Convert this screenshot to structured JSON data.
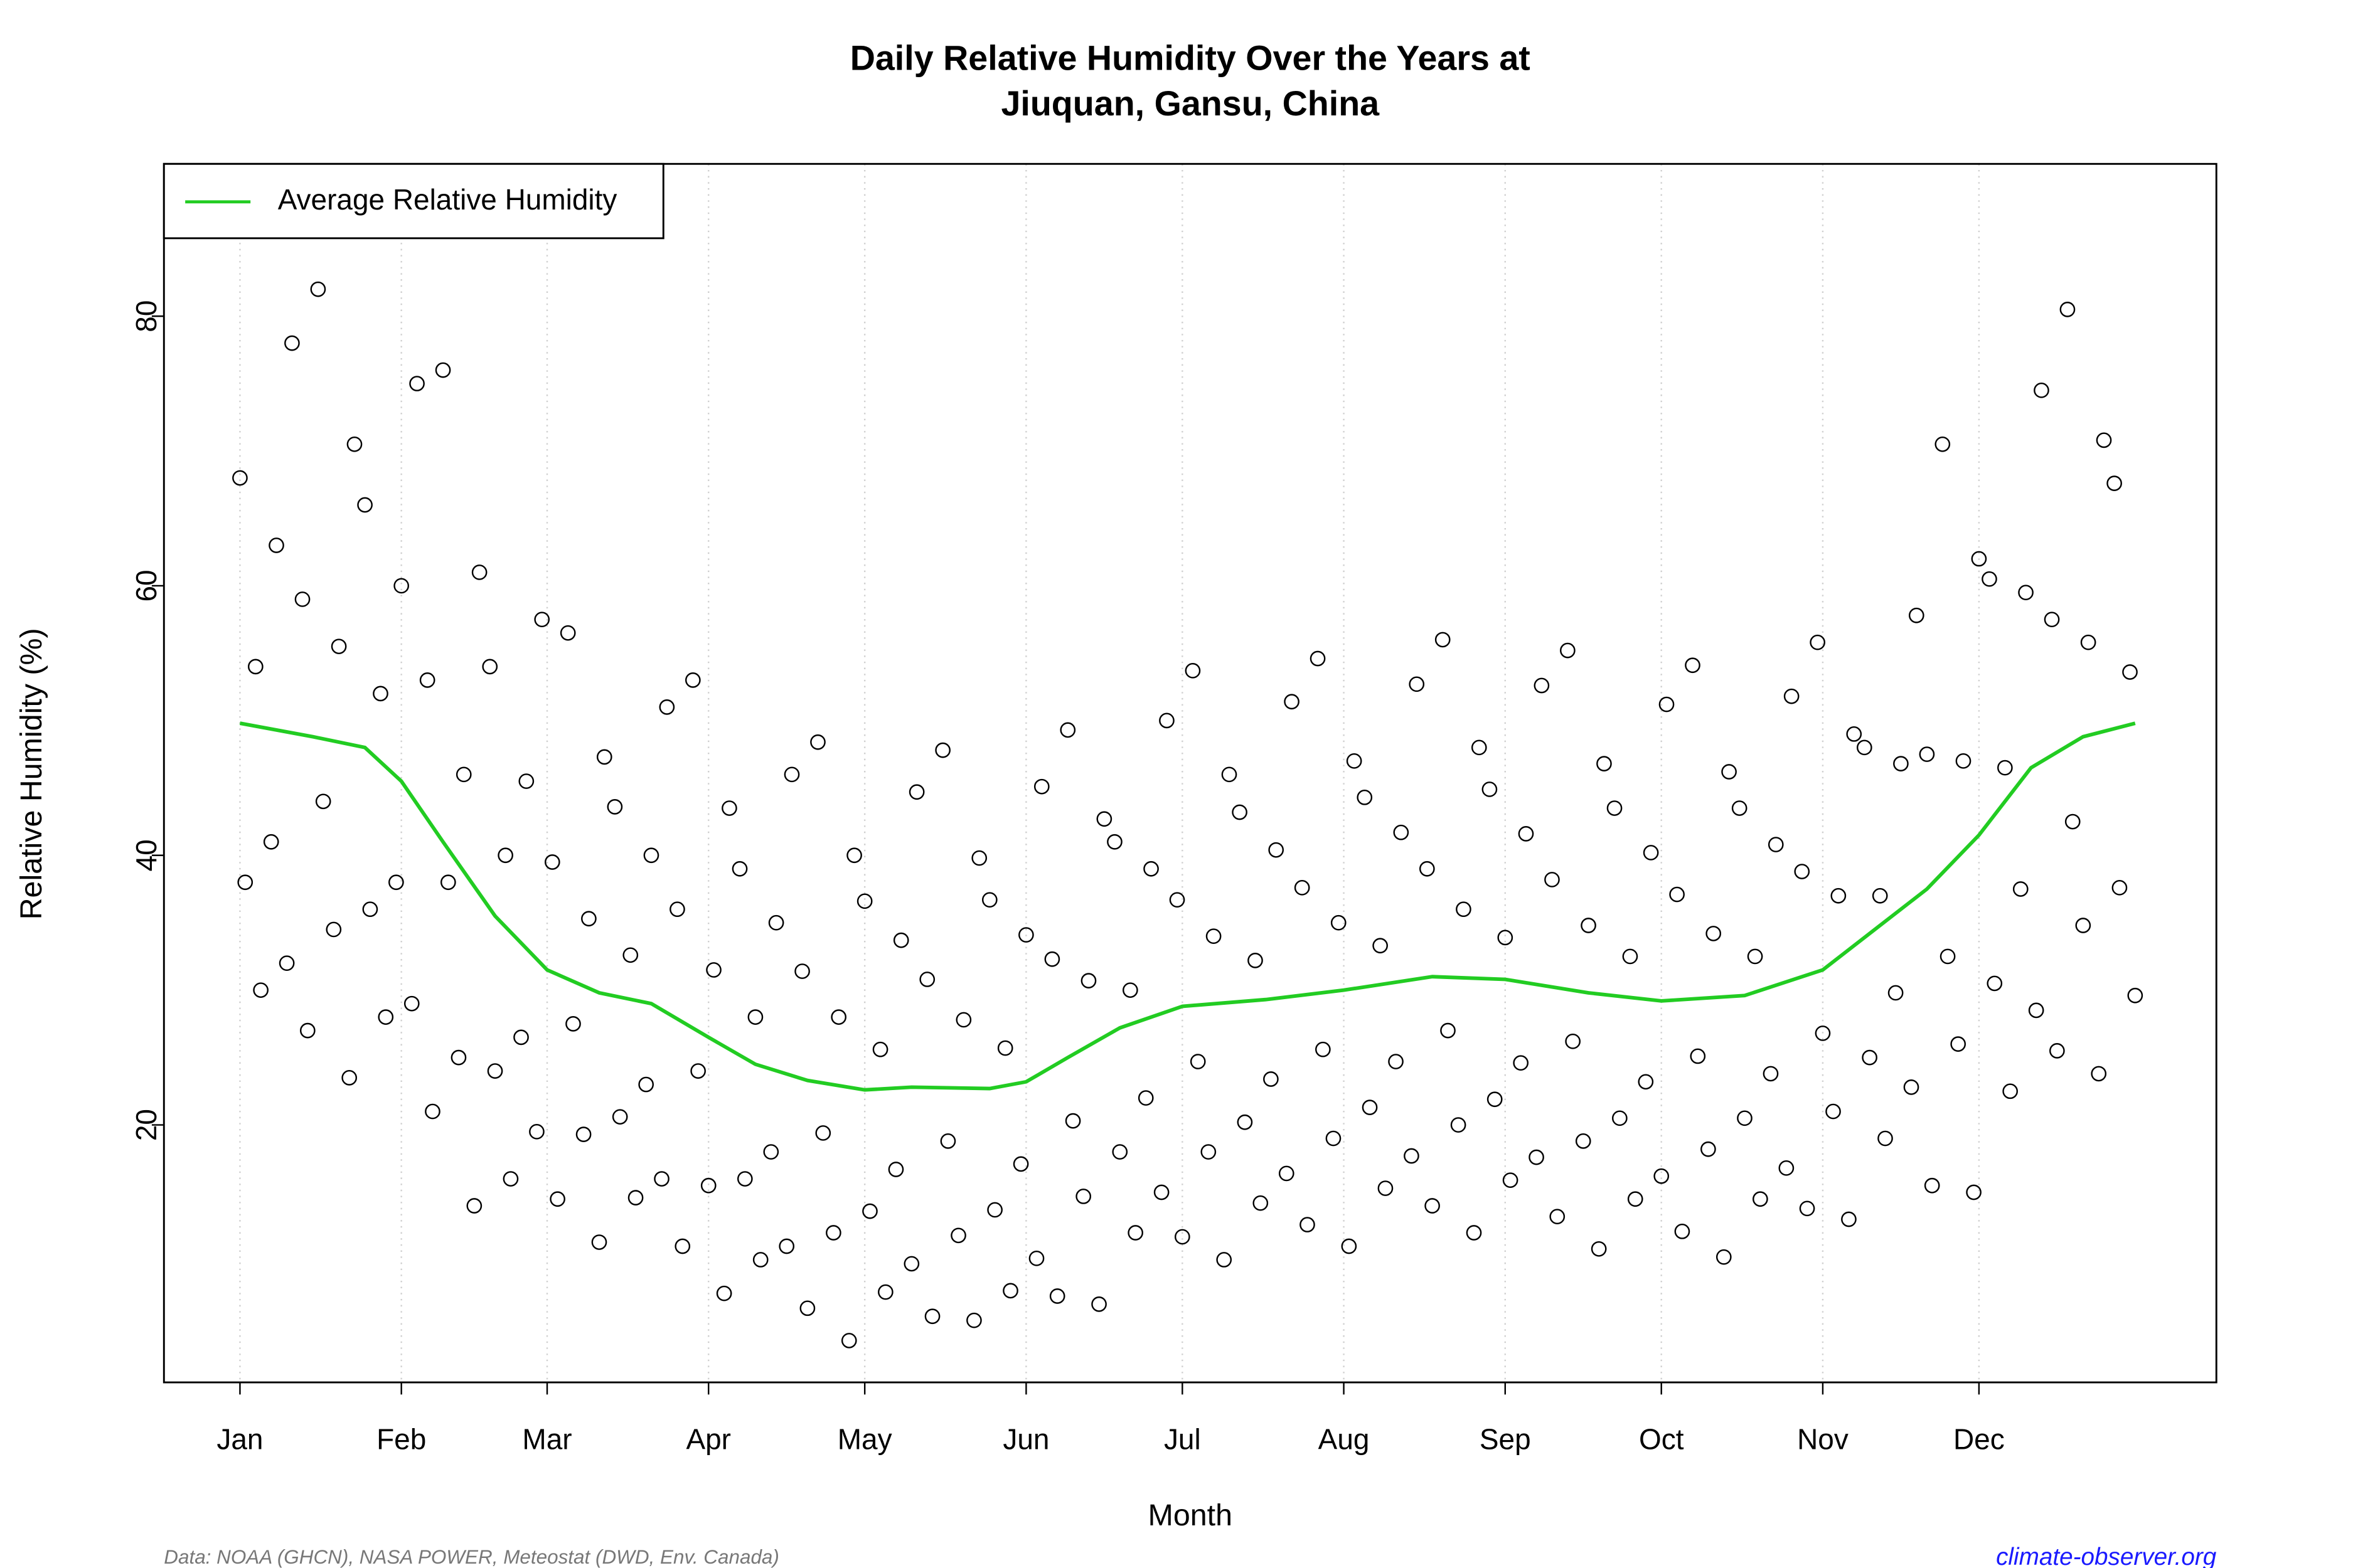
{
  "chart_data": {
    "type": "scatter",
    "title": "Daily Relative Humidity Over the Years at",
    "subtitle": "Jiuquan, Gansu, China",
    "x_label": "Month",
    "y_label": "Relative Humidity  (%)",
    "source": "Data: NOAA (GHCN), NASA POWER, Meteostat (DWD, Env. Canada)",
    "website": "climate-observer.org",
    "xlim": [
      -13.6,
      380.6
    ],
    "ylim": [
      0.9,
      91.3
    ],
    "xticks": [
      {
        "value": 1,
        "label": "Jan"
      },
      {
        "value": 32,
        "label": "Feb"
      },
      {
        "value": 60,
        "label": "Mar"
      },
      {
        "value": 91,
        "label": "Apr"
      },
      {
        "value": 121,
        "label": "May"
      },
      {
        "value": 152,
        "label": "Jun"
      },
      {
        "value": 182,
        "label": "Jul"
      },
      {
        "value": 213,
        "label": "Aug"
      },
      {
        "value": 244,
        "label": "Sep"
      },
      {
        "value": 274,
        "label": "Oct"
      },
      {
        "value": 305,
        "label": "Nov"
      },
      {
        "value": 335,
        "label": "Dec"
      }
    ],
    "yticks": [
      20,
      40,
      60,
      80
    ],
    "grid": "x",
    "legend_position": "top-left",
    "point_color": "#000000",
    "x": [
      1,
      2,
      4,
      5,
      7,
      8,
      10,
      11,
      13,
      14,
      16,
      17,
      19,
      20,
      22,
      23,
      25,
      26,
      28,
      29,
      31,
      32,
      34,
      35,
      37,
      38,
      40,
      41,
      43,
      44,
      46,
      47,
      49,
      50,
      52,
      53,
      55,
      56,
      58,
      59,
      61,
      62,
      64,
      65,
      67,
      68,
      70,
      71,
      73,
      74,
      76,
      77,
      79,
      80,
      82,
      83,
      85,
      86,
      88,
      89,
      91,
      92,
      94,
      95,
      97,
      98,
      100,
      101,
      103,
      104,
      106,
      107,
      109,
      110,
      112,
      113,
      115,
      116,
      118,
      119,
      121,
      122,
      124,
      125,
      127,
      128,
      130,
      131,
      133,
      134,
      136,
      137,
      139,
      140,
      142,
      143,
      145,
      146,
      148,
      149,
      151,
      152,
      154,
      155,
      157,
      158,
      160,
      161,
      163,
      164,
      166,
      167,
      169,
      170,
      172,
      173,
      175,
      176,
      178,
      179,
      181,
      182,
      184,
      185,
      187,
      188,
      190,
      191,
      193,
      194,
      196,
      197,
      199,
      200,
      202,
      203,
      205,
      206,
      208,
      209,
      211,
      212,
      214,
      215,
      217,
      218,
      220,
      221,
      223,
      224,
      226,
      227,
      229,
      230,
      232,
      233,
      235,
      236,
      238,
      239,
      241,
      242,
      244,
      245,
      247,
      248,
      250,
      251,
      253,
      254,
      256,
      257,
      259,
      260,
      262,
      263,
      265,
      266,
      268,
      269,
      271,
      272,
      274,
      275,
      277,
      278,
      280,
      281,
      283,
      284,
      286,
      287,
      289,
      290,
      292,
      293,
      295,
      296,
      298,
      299,
      301,
      302,
      304,
      305,
      307,
      308,
      310,
      311,
      313,
      314,
      316,
      317,
      319,
      320,
      322,
      323,
      325,
      326,
      328,
      329,
      331,
      332,
      334,
      335,
      337,
      338,
      340,
      341,
      343,
      344,
      346,
      347,
      349,
      350,
      352,
      353,
      355,
      356,
      358,
      359,
      361,
      362,
      364,
      365
    ],
    "y": [
      68,
      38,
      54,
      30,
      41,
      63,
      32,
      78,
      59,
      27,
      82,
      44,
      34.5,
      55.5,
      23.5,
      70.5,
      66,
      36,
      52,
      28,
      38,
      60,
      29,
      75,
      53,
      21,
      76,
      38,
      25,
      46,
      14,
      61,
      54,
      24,
      40,
      16,
      26.5,
      45.5,
      19.5,
      57.5,
      39.5,
      14.5,
      56.5,
      27.5,
      19.3,
      35.3,
      11.3,
      47.3,
      43.6,
      20.6,
      32.6,
      14.6,
      23,
      40,
      16,
      51,
      36,
      11,
      53,
      24,
      15.5,
      31.5,
      7.5,
      43.5,
      39,
      16,
      28,
      10,
      18,
      35,
      11,
      46,
      31.4,
      6.4,
      48.4,
      19.4,
      12,
      28,
      4,
      40,
      36.6,
      13.6,
      25.6,
      7.6,
      16.7,
      33.7,
      9.7,
      44.7,
      30.8,
      5.8,
      47.8,
      18.8,
      11.8,
      27.8,
      5.5,
      39.8,
      36.7,
      13.7,
      25.7,
      7.7,
      17.1,
      34.1,
      10.1,
      45.1,
      32.3,
      7.3,
      49.3,
      20.3,
      14.7,
      30.7,
      6.7,
      42.7,
      41,
      18,
      30,
      12,
      22,
      39,
      15,
      50,
      36.7,
      11.7,
      53.7,
      24.7,
      18,
      34,
      10,
      46,
      43.2,
      20.2,
      32.2,
      14.2,
      23.4,
      40.4,
      16.4,
      51.4,
      37.6,
      12.6,
      54.6,
      25.6,
      19,
      35,
      11,
      47,
      44.3,
      21.3,
      33.3,
      15.3,
      24.7,
      41.7,
      17.7,
      52.7,
      39,
      14,
      56,
      27,
      20,
      36,
      12,
      48,
      44.9,
      21.9,
      33.9,
      15.9,
      24.6,
      41.6,
      17.6,
      52.6,
      38.2,
      13.2,
      55.2,
      26.2,
      18.8,
      34.8,
      10.8,
      46.8,
      43.5,
      20.5,
      32.5,
      14.5,
      23.2,
      40.2,
      16.2,
      51.2,
      37.1,
      12.1,
      54.1,
      25.1,
      18.2,
      34.2,
      10.2,
      46.2,
      43.5,
      20.5,
      32.5,
      14.5,
      23.8,
      40.8,
      16.8,
      51.8,
      38.8,
      13.8,
      55.8,
      26.8,
      21,
      37,
      13,
      49,
      48,
      25,
      37,
      19,
      29.8,
      46.8,
      22.8,
      57.8,
      47.5,
      15.5,
      70.5,
      32.5,
      26,
      47,
      15,
      62,
      60.5,
      30.5,
      46.5,
      22.5,
      37.5,
      59.5,
      28.5,
      74.5,
      57.5,
      25.5,
      80.5,
      42.5,
      34.8,
      55.8,
      23.8,
      70.8,
      67.6,
      37.6,
      53.6,
      29.6
    ],
    "series": [
      {
        "name": "Average Relative Humidity",
        "type": "line",
        "color": "#22cc22",
        "x": [
          1,
          15,
          25,
          32,
          40,
          50,
          60,
          70,
          80,
          91,
          100,
          110,
          121,
          130,
          145,
          152,
          160,
          170,
          182,
          198,
          213,
          230,
          244,
          260,
          274,
          290,
          305,
          315,
          325,
          335,
          345,
          355,
          365
        ],
        "values": [
          49.8,
          48.8,
          48,
          45.5,
          41,
          35.5,
          31.5,
          29.8,
          29,
          26.5,
          24.5,
          23.3,
          22.6,
          22.8,
          22.7,
          23.2,
          25,
          27.2,
          28.8,
          29.3,
          30,
          31,
          30.8,
          29.8,
          29.2,
          29.6,
          31.5,
          34.5,
          37.5,
          41.5,
          46.5,
          48.8,
          49.8
        ]
      }
    ]
  }
}
